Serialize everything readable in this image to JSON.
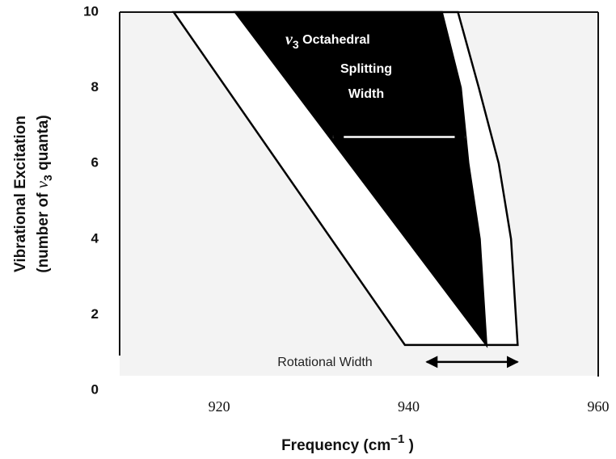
{
  "chart_data": {
    "type": "region",
    "xlim": [
      909.5,
      960
    ],
    "ylim": [
      0,
      10
    ],
    "xticks": [
      920,
      940,
      960
    ],
    "yticks": [
      0,
      2,
      4,
      6,
      8,
      10
    ],
    "xlabel": [
      "Frequency  (cm",
      "−1",
      " )"
    ],
    "ylabel": [
      [
        "Vibrational Excitation"
      ],
      [
        "(number of ",
        "ν",
        "3",
        " quanta)"
      ]
    ],
    "regions": [
      {
        "color": "#ffffff",
        "x": [
          915.2,
          945.2,
          947.4,
          949.5,
          950.8,
          951.3,
          951.5,
          939.6
        ],
        "y": [
          10,
          10,
          8,
          6,
          4,
          2,
          1.2,
          1.2
        ]
      },
      {
        "color": "#000000",
        "x": [
          921.7,
          943.5,
          945.5,
          946.3,
          947.5,
          948.0,
          948.2
        ],
        "y": [
          10,
          10,
          8,
          6,
          4,
          2,
          1.2
        ]
      }
    ],
    "annotations": [
      {
        "text": [
          "ν",
          "3",
          " Octahedral",
          "Splitting",
          "Width"
        ],
        "x": [
          932,
          946
        ],
        "y": 6.7
      },
      {
        "text": [
          "Rotational Width"
        ],
        "x": [
          941.9,
          951.5
        ],
        "y": 0.75
      }
    ]
  }
}
